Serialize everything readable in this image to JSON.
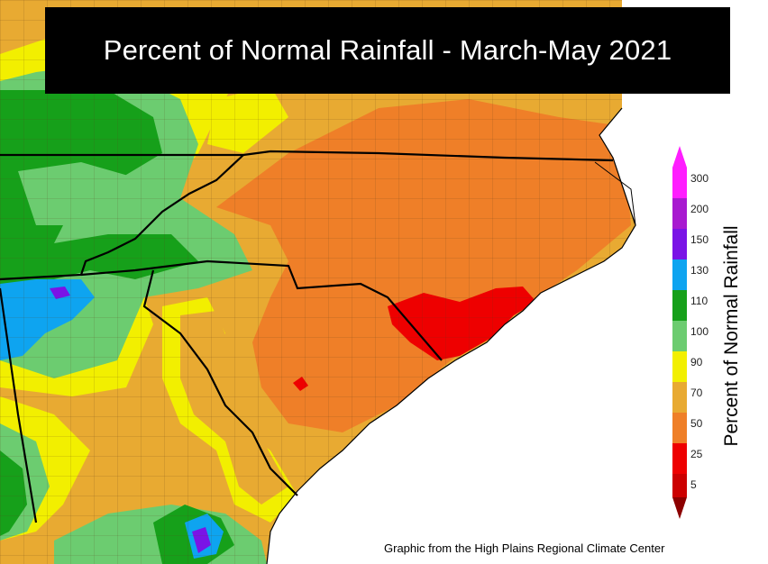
{
  "title": "Percent of Normal Rainfall - March-May 2021",
  "legend": {
    "title": "Percent of Normal Rainfall",
    "ticks": [
      "300",
      "200",
      "150",
      "130",
      "110",
      "100",
      "90",
      "70",
      "50",
      "25",
      "5"
    ],
    "colors": {
      "300": "#ff1eff",
      "200": "#a81ad0",
      "150": "#7a14e6",
      "130": "#0ea4f0",
      "110": "#16a01a",
      "100": "#6ccc70",
      "90": "#f2ef00",
      "70": "#e8aa32",
      "50": "#ef7f28",
      "25": "#ee0000",
      "5": "#cc0000",
      "lt5": "#8c0000"
    }
  },
  "credit": "Graphic from the High Plains Regional Climate Center",
  "map": {
    "region": "North Carolina, South Carolina, Georgia, Virginia, Tennessee",
    "colors": {
      "ocean": "#ffffff",
      "state_border": "#000000",
      "county_border": "#5a3a1a"
    }
  }
}
